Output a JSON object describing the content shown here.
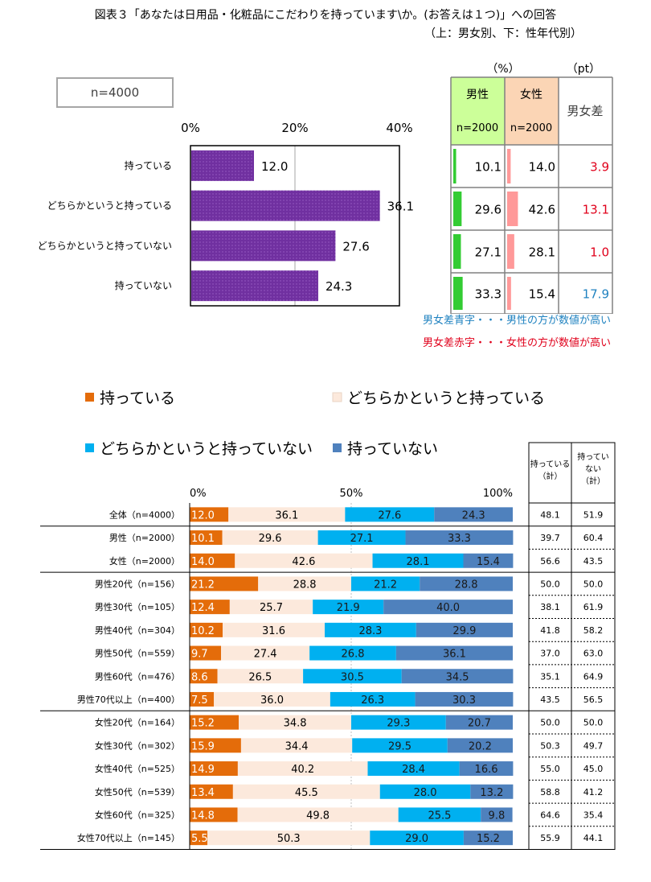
{
  "title": {
    "line1": "図表３「あなたは日用品・化粧品にこだわりを持っています\\か。(お答えは１つ)」への回答",
    "line2": "（上：男女別、下：性年代別）"
  },
  "n_total_label": "n=4000",
  "table_units": {
    "pct": "（%）",
    "pt": "（pt）"
  },
  "gender_table": {
    "headers": {
      "male": "男性",
      "male_n": "n=2000",
      "female": "女性",
      "female_n": "n=2000",
      "diff": "男女差"
    },
    "rows": [
      {
        "male": 10.1,
        "female": 14.0,
        "diff": "3.9",
        "diff_color": "#e0001b",
        "male_label": "10.1",
        "female_label": "14.0"
      },
      {
        "male": 29.6,
        "female": 42.6,
        "diff": "13.1",
        "diff_color": "#e0001b",
        "male_label": "29.6",
        "female_label": "42.6"
      },
      {
        "male": 27.1,
        "female": 28.1,
        "diff": "1.0",
        "diff_color": "#e0001b",
        "male_label": "27.1",
        "female_label": "28.1"
      },
      {
        "male": 33.3,
        "female": 15.4,
        "diff": "17.9",
        "diff_color": "#1f82c0",
        "male_label": "33.3",
        "female_label": "15.4"
      }
    ],
    "colors": {
      "male_bar": "#33cc33",
      "female_bar": "#ff9999",
      "male_header": "#ccff99",
      "female_header": "#fbd5b5"
    }
  },
  "notes": {
    "blue": "男女差青字・・・男性の方が数値が高い",
    "red": "男女差赤字・・・女性の方が数値が高い",
    "blue_color": "#1f82c0",
    "red_color": "#e0001b"
  },
  "chart_data": [
    {
      "type": "bar",
      "orientation": "horizontal",
      "categories": [
        "持っている",
        "どちらかというと持っている",
        "どちらかというと持っていない",
        "持っていない"
      ],
      "values": [
        12.0,
        36.1,
        27.6,
        24.3
      ],
      "value_labels": [
        "12.0",
        "36.1",
        "27.6",
        "24.3"
      ],
      "xlim": [
        0,
        40
      ],
      "ticks": [
        0,
        20,
        40
      ],
      "tick_labels": [
        "0%",
        "20%",
        "40%"
      ],
      "color": "#7030a0",
      "gridlines": true
    },
    {
      "type": "bar",
      "orientation": "horizontal",
      "stacked": true,
      "xlim": [
        0,
        100
      ],
      "ticks": [
        0,
        50,
        100
      ],
      "tick_labels": [
        "0%",
        "50%",
        "100%"
      ],
      "legend": [
        "持っている",
        "どちらかというと持っている",
        "どちらかというと持っていない",
        "持っていない"
      ],
      "legend_position": "top",
      "colors": [
        "#e46c0a",
        "#fce9dc",
        "#00b0f0",
        "#4f81bd"
      ],
      "categories": [
        "全体（n=4000）",
        "男性（n=2000）",
        "女性（n=2000）",
        "男性20代（n=156）",
        "男性30代（n=105）",
        "男性40代（n=304）",
        "男性50代（n=559）",
        "男性60代（n=476）",
        "男性70代以上（n=400）",
        "女性20代（n=164）",
        "女性30代（n=302）",
        "女性40代（n=525）",
        "女性50代（n=539）",
        "女性60代（n=325）",
        "女性70代以上（n=145）"
      ],
      "series": [
        {
          "name": "持っている",
          "values": [
            12.0,
            10.1,
            14.0,
            21.2,
            12.4,
            10.2,
            9.7,
            8.6,
            7.5,
            15.2,
            15.9,
            14.9,
            13.4,
            14.8,
            5.5
          ]
        },
        {
          "name": "どちらかというと持っている",
          "values": [
            36.1,
            29.6,
            42.6,
            28.8,
            25.7,
            31.6,
            27.4,
            26.5,
            36.0,
            34.8,
            34.4,
            40.2,
            45.5,
            49.8,
            50.3
          ]
        },
        {
          "name": "どちらかというと持っていない",
          "values": [
            27.6,
            27.1,
            28.1,
            21.2,
            21.9,
            28.3,
            26.8,
            30.5,
            26.3,
            29.3,
            29.5,
            28.4,
            28.0,
            25.5,
            29.0
          ]
        },
        {
          "name": "持っていない",
          "values": [
            24.3,
            33.3,
            15.4,
            28.8,
            40.0,
            29.9,
            36.1,
            34.5,
            30.3,
            20.7,
            20.2,
            16.6,
            13.2,
            9.8,
            15.2
          ]
        }
      ],
      "labels": [
        [
          "12.0",
          "36.1",
          "27.6",
          "24.3"
        ],
        [
          "10.1",
          "29.6",
          "27.1",
          "33.3"
        ],
        [
          "14.0",
          "42.6",
          "28.1",
          "15.4"
        ],
        [
          "21.2",
          "28.8",
          "21.2",
          "28.8"
        ],
        [
          "12.4",
          "25.7",
          "21.9",
          "40.0"
        ],
        [
          "10.2",
          "31.6",
          "28.3",
          "29.9"
        ],
        [
          "9.7",
          "27.4",
          "26.8",
          "36.1"
        ],
        [
          "8.6",
          "26.5",
          "30.5",
          "34.5"
        ],
        [
          "7.5",
          "36.0",
          "26.3",
          "30.3"
        ],
        [
          "15.2",
          "34.8",
          "29.3",
          "20.7"
        ],
        [
          "15.9",
          "34.4",
          "29.5",
          "20.2"
        ],
        [
          "14.9",
          "40.2",
          "28.4",
          "16.6"
        ],
        [
          "13.4",
          "45.5",
          "28.0",
          "13.2"
        ],
        [
          "14.8",
          "49.8",
          "25.5",
          "9.8"
        ],
        [
          "5.5",
          "50.3",
          "29.0",
          "15.2"
        ]
      ],
      "totals_headers": [
        "持っている（計）",
        "持ってい ない（計）"
      ],
      "totals": [
        [
          "48.1",
          "51.9"
        ],
        [
          "39.7",
          "60.4"
        ],
        [
          "56.6",
          "43.5"
        ],
        [
          "50.0",
          "50.0"
        ],
        [
          "38.1",
          "61.9"
        ],
        [
          "41.8",
          "58.2"
        ],
        [
          "37.0",
          "63.0"
        ],
        [
          "35.1",
          "64.9"
        ],
        [
          "43.5",
          "56.5"
        ],
        [
          "50.0",
          "50.0"
        ],
        [
          "50.3",
          "49.7"
        ],
        [
          "55.0",
          "45.0"
        ],
        [
          "58.8",
          "41.2"
        ],
        [
          "64.6",
          "35.4"
        ],
        [
          "55.9",
          "44.1"
        ]
      ]
    }
  ]
}
